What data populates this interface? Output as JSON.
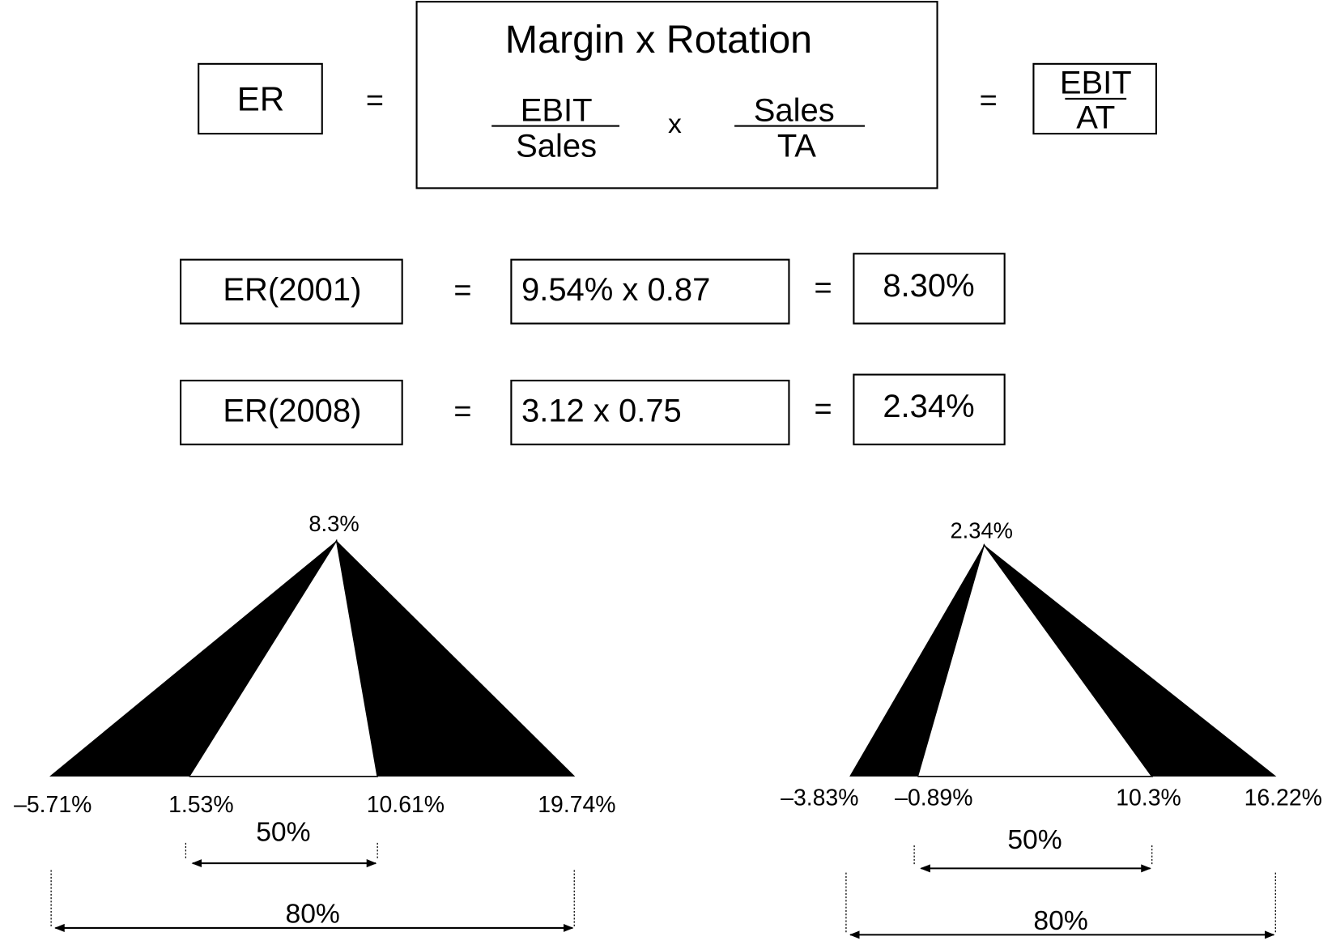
{
  "formula": {
    "lhs": "ER",
    "eq1": "=",
    "title": "Margin x Rotation",
    "frac1": {
      "num": "EBIT",
      "den": "Sales"
    },
    "times": "x",
    "frac2": {
      "num": "Sales",
      "den": "TA"
    },
    "eq2": "=",
    "result": {
      "num": "EBIT",
      "den": "AT"
    }
  },
  "rows": [
    {
      "label": "ER(2001)",
      "eq": "=",
      "expr": "9.54% x 0.87",
      "eq2": "=",
      "result": "8.30%"
    },
    {
      "label": "ER(2008)",
      "eq": "=",
      "expr": "3.12 x 0.75",
      "eq2": "=",
      "result": "2.34%"
    }
  ],
  "triangles": [
    {
      "peak": "8.3%",
      "base": [
        "–5.71%",
        "1.53%",
        "10.61%",
        "19.74%"
      ],
      "inner": "50%",
      "outer": "80%"
    },
    {
      "peak": "2.34%",
      "base": [
        "–3.83%",
        "–0.89%",
        "10.3%",
        "16.22%"
      ],
      "inner": "50%",
      "outer": "80%"
    }
  ]
}
